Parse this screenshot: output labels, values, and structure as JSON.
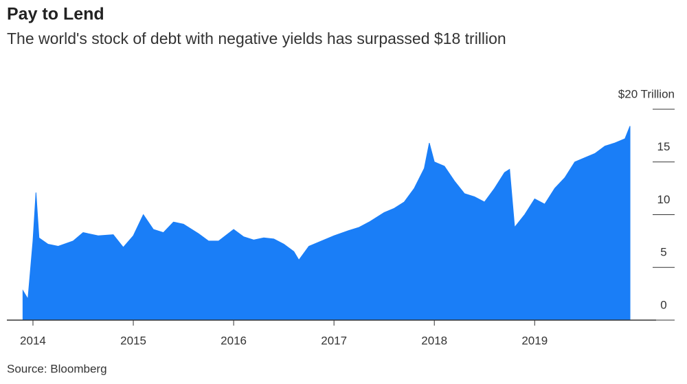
{
  "chart_data": {
    "type": "area",
    "title": "Pay to Lend",
    "subtitle": "The world's stock of debt with negative yields has surpassed $18 trillion",
    "source": "Source: Bloomberg",
    "color": "#1a7ef7",
    "x": [
      2013.9,
      2013.95,
      2014.0,
      2014.03,
      2014.06,
      2014.15,
      2014.25,
      2014.4,
      2014.5,
      2014.65,
      2014.8,
      2014.9,
      2015.0,
      2015.05,
      2015.1,
      2015.2,
      2015.3,
      2015.4,
      2015.5,
      2015.65,
      2015.75,
      2015.85,
      2016.0,
      2016.1,
      2016.2,
      2016.3,
      2016.4,
      2016.5,
      2016.6,
      2016.65,
      2016.75,
      2016.9,
      2017.0,
      2017.15,
      2017.25,
      2017.35,
      2017.5,
      2017.6,
      2017.7,
      2017.8,
      2017.9,
      2017.95,
      2018.0,
      2018.1,
      2018.2,
      2018.3,
      2018.4,
      2018.5,
      2018.6,
      2018.7,
      2018.75,
      2018.8,
      2018.9,
      2019.0,
      2019.1,
      2019.2,
      2019.3,
      2019.4,
      2019.5,
      2019.6,
      2019.7,
      2019.8,
      2019.9,
      2019.95
    ],
    "values": [
      2.8,
      2.0,
      7.5,
      12.1,
      7.8,
      7.2,
      7.0,
      7.5,
      8.3,
      8.0,
      8.1,
      6.9,
      8.0,
      9.0,
      10.0,
      8.6,
      8.3,
      9.3,
      9.1,
      8.2,
      7.5,
      7.5,
      8.6,
      7.9,
      7.6,
      7.8,
      7.7,
      7.2,
      6.5,
      5.7,
      7.0,
      7.6,
      8.0,
      8.5,
      8.8,
      9.3,
      10.2,
      10.6,
      11.2,
      12.5,
      14.4,
      16.8,
      15.0,
      14.6,
      13.2,
      12.0,
      11.7,
      11.2,
      12.5,
      14.0,
      14.3,
      8.8,
      10.0,
      11.5,
      11.0,
      12.5,
      13.5,
      15.0,
      15.4,
      15.8,
      16.5,
      16.8,
      17.2,
      18.4
    ],
    "xlim": [
      2013.74,
      2020.21
    ],
    "xticks": [
      2014,
      2015,
      2016,
      2017,
      2018,
      2019
    ],
    "ylim": [
      0,
      20
    ],
    "yticks": [
      0,
      5,
      10,
      15,
      {
        "value": 20,
        "label": "$20 Trillion"
      }
    ]
  }
}
